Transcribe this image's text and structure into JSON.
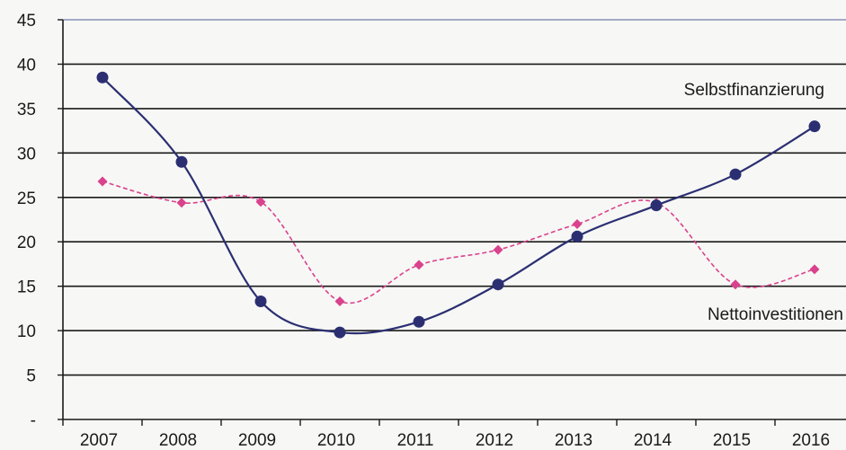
{
  "chart_data": {
    "type": "line",
    "categories": [
      "2007",
      "2008",
      "2009",
      "2010",
      "2011",
      "2012",
      "2013",
      "2014",
      "2015",
      "2016"
    ],
    "series": [
      {
        "name": "Selbstfinanzierung",
        "values": [
          38.5,
          29.0,
          13.3,
          9.8,
          11.0,
          15.2,
          20.6,
          24.1,
          27.6,
          33.0
        ],
        "color": "#2b2f72",
        "style": "solid",
        "marker": "circle"
      },
      {
        "name": "Nettoinvestitionen",
        "values": [
          26.8,
          24.4,
          24.5,
          13.3,
          17.4,
          19.1,
          22.0,
          24.4,
          15.2,
          16.9
        ],
        "color": "#d9428c",
        "style": "dashed",
        "marker": "diamond"
      }
    ],
    "y_ticks": [
      "-",
      "5",
      "10",
      "15",
      "20",
      "25",
      "30",
      "35",
      "40",
      "45"
    ],
    "ylim": [
      0,
      45
    ],
    "grid": true
  }
}
